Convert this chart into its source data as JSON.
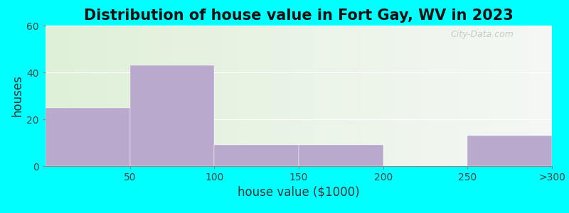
{
  "title": "Distribution of house value in Fort Gay, WV in 2023",
  "xlabel": "house value ($1000)",
  "ylabel": "houses",
  "bar_values": [
    25,
    43,
    9,
    9,
    0,
    13
  ],
  "bar_labels": [
    "50",
    "100",
    "150",
    "200",
    "250",
    ">300"
  ],
  "bar_color": "#b9a9cc",
  "ylim": [
    0,
    60
  ],
  "yticks": [
    0,
    20,
    40,
    60
  ],
  "bg_outer": "#00ffff",
  "title_fontsize": 15,
  "axis_label_fontsize": 12,
  "tick_fontsize": 10,
  "watermark": "City-Data.com"
}
